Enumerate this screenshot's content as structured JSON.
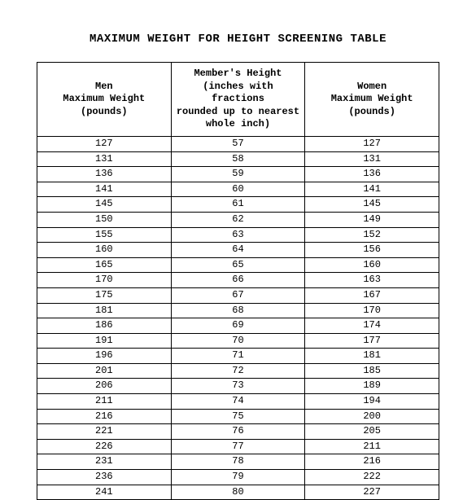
{
  "title": "MAXIMUM WEIGHT FOR HEIGHT SCREENING TABLE",
  "table": {
    "type": "table",
    "background_color": "#ffffff",
    "border_color": "#000000",
    "font_family": "Courier New",
    "header_fontsize": 12,
    "cell_fontsize": 12,
    "columns": [
      {
        "key": "men",
        "label_lines": [
          "Men",
          "Maximum Weight",
          "(pounds)"
        ],
        "align": "center"
      },
      {
        "key": "height",
        "label_lines": [
          "Member's Height",
          "(inches with fractions",
          "rounded up to nearest",
          "whole inch)"
        ],
        "align": "center"
      },
      {
        "key": "women",
        "label_lines": [
          "Women",
          "Maximum Weight",
          "(pounds)"
        ],
        "align": "center"
      }
    ],
    "rows": [
      {
        "men": "127",
        "height": "57",
        "women": "127"
      },
      {
        "men": "131",
        "height": "58",
        "women": "131"
      },
      {
        "men": "136",
        "height": "59",
        "women": "136"
      },
      {
        "men": "141",
        "height": "60",
        "women": "141"
      },
      {
        "men": "145",
        "height": "61",
        "women": "145"
      },
      {
        "men": "150",
        "height": "62",
        "women": "149"
      },
      {
        "men": "155",
        "height": "63",
        "women": "152"
      },
      {
        "men": "160",
        "height": "64",
        "women": "156"
      },
      {
        "men": "165",
        "height": "65",
        "women": "160"
      },
      {
        "men": "170",
        "height": "66",
        "women": "163"
      },
      {
        "men": "175",
        "height": "67",
        "women": "167"
      },
      {
        "men": "181",
        "height": "68",
        "women": "170"
      },
      {
        "men": "186",
        "height": "69",
        "women": "174"
      },
      {
        "men": "191",
        "height": "70",
        "women": "177"
      },
      {
        "men": "196",
        "height": "71",
        "women": "181"
      },
      {
        "men": "201",
        "height": "72",
        "women": "185"
      },
      {
        "men": "206",
        "height": "73",
        "women": "189"
      },
      {
        "men": "211",
        "height": "74",
        "women": "194"
      },
      {
        "men": "216",
        "height": "75",
        "women": "200"
      },
      {
        "men": "221",
        "height": "76",
        "women": "205"
      },
      {
        "men": "226",
        "height": "77",
        "women": "211"
      },
      {
        "men": "231",
        "height": "78",
        "women": "216"
      },
      {
        "men": "236",
        "height": "79",
        "women": "222"
      },
      {
        "men": "241",
        "height": "80",
        "women": "227"
      }
    ]
  }
}
